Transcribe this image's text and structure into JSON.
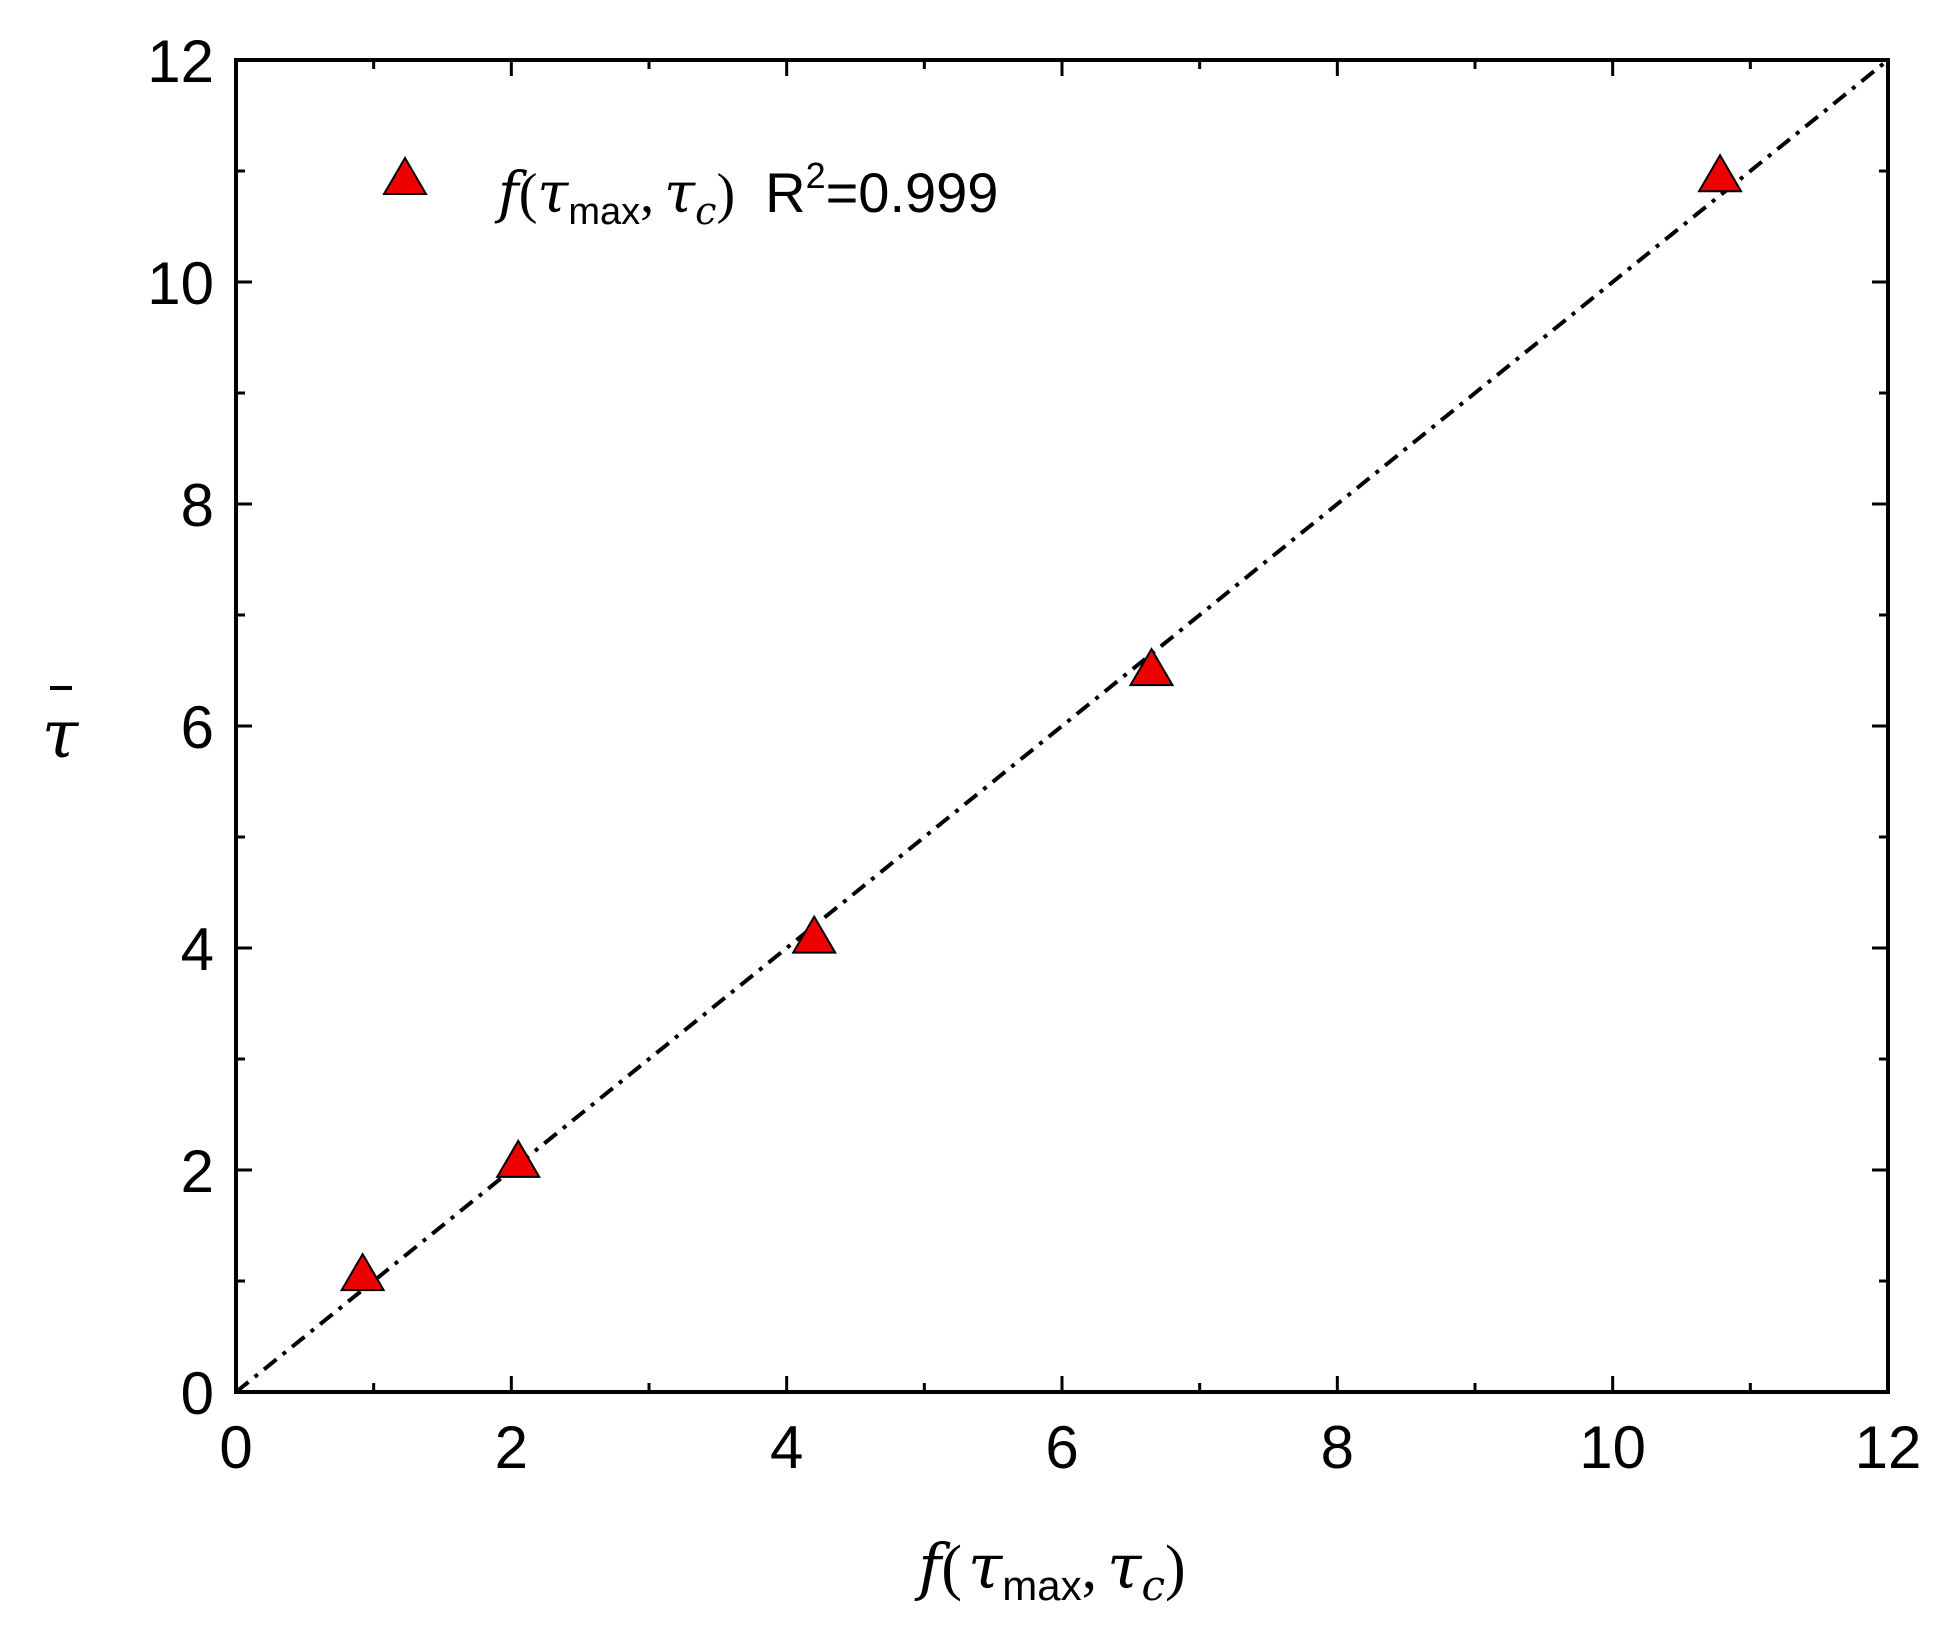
{
  "chart_data": {
    "type": "scatter",
    "xlabel": {
      "prefix": "f",
      "open": "(",
      "var1": "τ",
      "sub1": "max",
      "comma": ",",
      "var2": "τ",
      "sub2": "c",
      "close": ")"
    },
    "ylabel": "τ",
    "xlim": [
      0,
      12
    ],
    "ylim": [
      0,
      12
    ],
    "x_ticks": [
      "0",
      "2",
      "4",
      "6",
      "8",
      "10",
      "12"
    ],
    "y_ticks": [
      "0",
      "2",
      "4",
      "6",
      "8",
      "10",
      "12"
    ],
    "x_tick_values": [
      0,
      2,
      4,
      6,
      8,
      10,
      12
    ],
    "y_tick_values": [
      0,
      2,
      4,
      6,
      8,
      10,
      12
    ],
    "minor_tick_step": 1,
    "grid": false,
    "legend_position": "top-left",
    "legend": {
      "prefix": "f",
      "open": "(",
      "var1": "τ",
      "sub1": "max",
      "comma": ",",
      "var2": "τ",
      "sub2": "c",
      "close": ")",
      "stat_label": "R",
      "stat_sup": "2",
      "stat_value": "=0.999"
    },
    "series": [
      {
        "marker": "triangle",
        "color": "#ee0000",
        "points": [
          {
            "x": 0.92,
            "y": 1.08
          },
          {
            "x": 2.05,
            "y": 2.1
          },
          {
            "x": 4.2,
            "y": 4.12
          },
          {
            "x": 6.65,
            "y": 6.53
          },
          {
            "x": 10.78,
            "y": 10.98
          }
        ]
      }
    ],
    "reference_line": {
      "style": "dash-dot",
      "color": "#000000",
      "from": [
        0,
        0
      ],
      "to": [
        12,
        12
      ]
    }
  }
}
